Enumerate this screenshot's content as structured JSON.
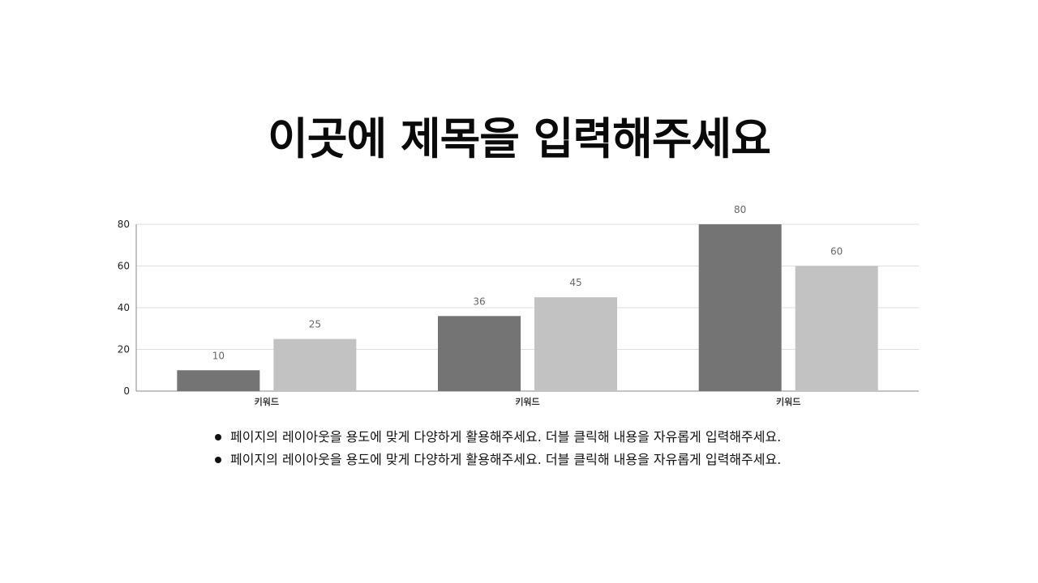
{
  "slide": {
    "title": "이곳에 제목을 입력해주세요",
    "bullets": [
      "페이지의 레이아웃을 용도에 맞게 다양하게 활용해주세요. 더블 클릭해 내용을 자유롭게 입력해주세요.",
      "페이지의 레이아웃을 용도에 맞게 다양하게 활용해주세요. 더블 클릭해 내용을 자유롭게 입력해주세요."
    ]
  },
  "colors": {
    "series_1": "#747474",
    "series_2": "#c2c2c2",
    "gridline": "#dddddd",
    "axis": "#888888"
  },
  "chart_data": {
    "type": "bar",
    "categories": [
      "키워드",
      "키워드",
      "키워드"
    ],
    "series": [
      {
        "values": [
          10,
          36,
          80
        ],
        "color": "#747474"
      },
      {
        "values": [
          25,
          45,
          60
        ],
        "color": "#c2c2c2"
      }
    ],
    "y_ticks": [
      0,
      20,
      40,
      60,
      80
    ],
    "ylim": [
      0,
      80
    ],
    "grid": true,
    "data_labels": true,
    "legend": false,
    "title": "",
    "xlabel": "",
    "ylabel": ""
  }
}
